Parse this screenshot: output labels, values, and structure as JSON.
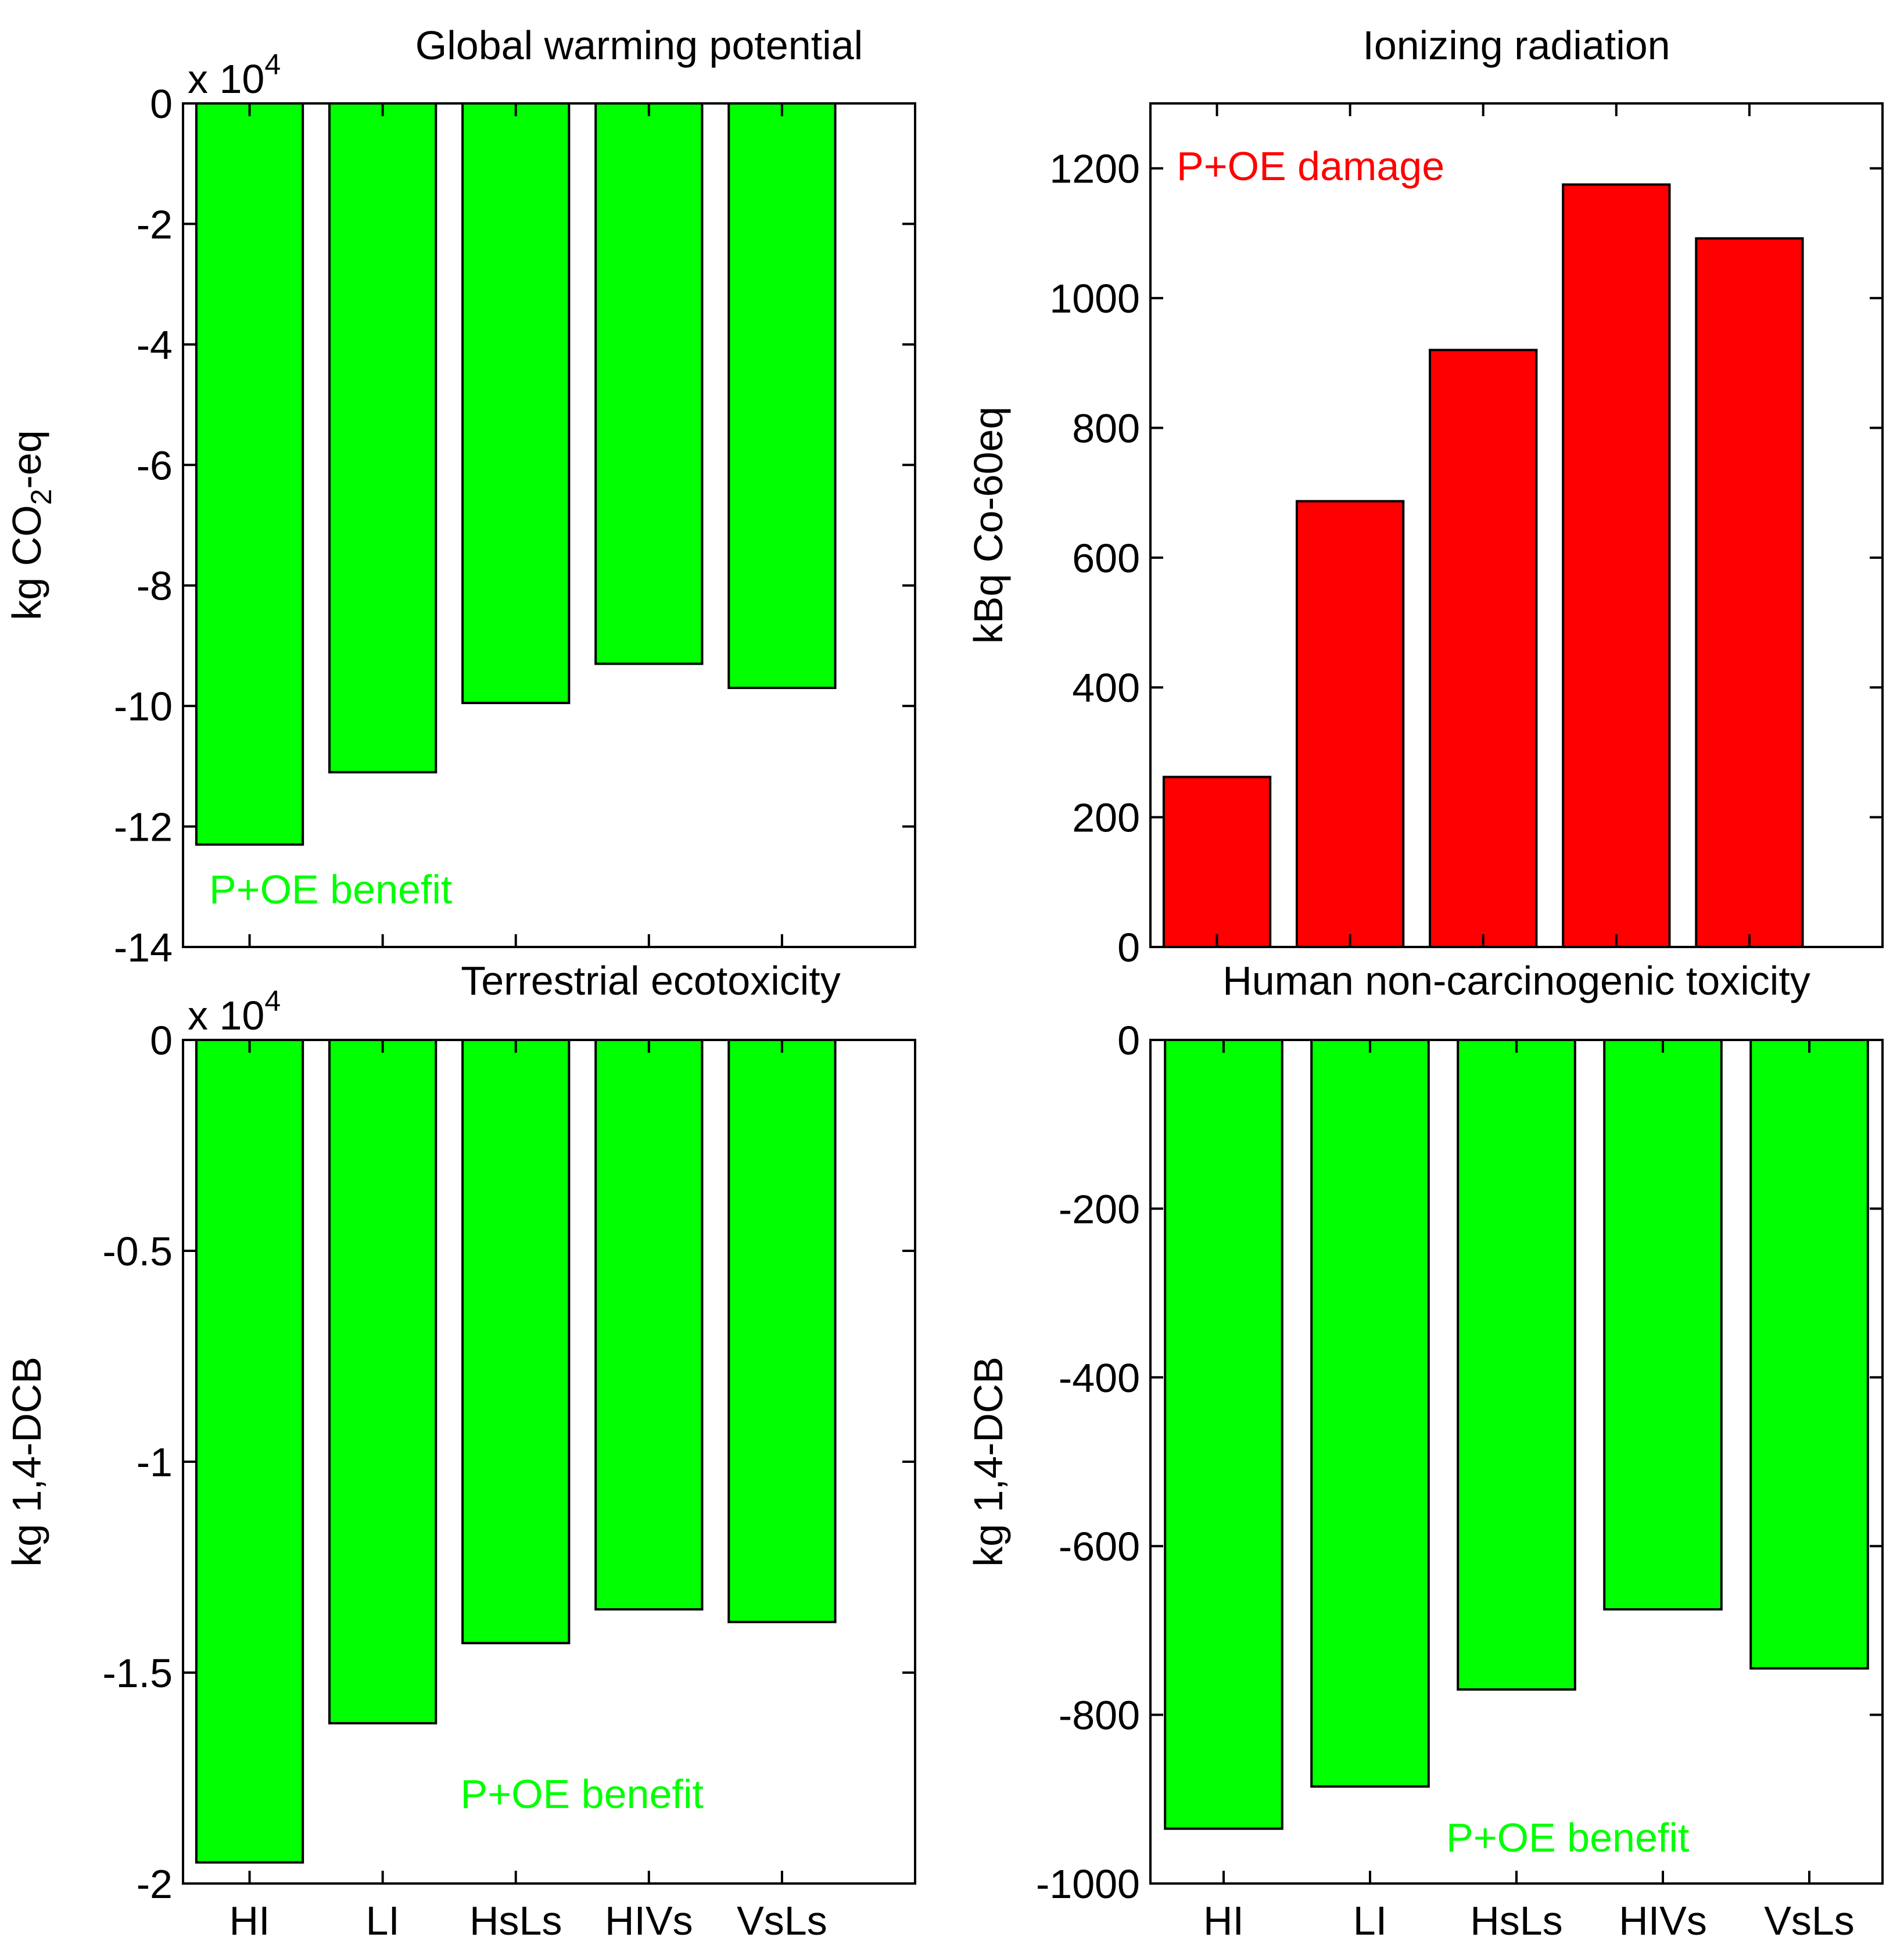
{
  "colors": {
    "benefit": "#00ff00",
    "damage": "#ff0000",
    "axis": "#000000",
    "background": "#ffffff"
  },
  "chart_data": [
    {
      "type": "bar",
      "title": "Global warming potential",
      "ylabel_parts": [
        "kg CO",
        "2",
        "-eq"
      ],
      "exponent_label": [
        "x 10",
        "4"
      ],
      "categories": [
        "HI",
        "LI",
        "HsLs",
        "HIVs",
        "VsLs"
      ],
      "values": [
        -12.3,
        -11.1,
        -9.95,
        -9.3,
        -9.7
      ],
      "value_scale": 10000,
      "ylim": [
        -14,
        0
      ],
      "yticks": [
        0,
        -2,
        -4,
        -6,
        -8,
        -10,
        -12,
        -14
      ],
      "ytick_labels": [
        "0",
        "-2",
        "-4",
        "-6",
        "-8",
        "-10",
        "-12",
        "-14"
      ],
      "xlim": [
        0.5,
        6
      ],
      "show_xtick_labels": false,
      "bar_color": "#00ff00",
      "annotation": {
        "text": "P+OE benefit",
        "color": "#00ff00",
        "placement": "bottom-left"
      }
    },
    {
      "type": "bar",
      "title": "Ionizing radiation",
      "ylabel": "kBq Co-60eq",
      "categories": [
        "HI",
        "LI",
        "HsLs",
        "HIVs",
        "VsLs"
      ],
      "values": [
        262,
        687,
        920,
        1175,
        1092
      ],
      "ylim": [
        0,
        1300
      ],
      "yticks": [
        0,
        200,
        400,
        600,
        800,
        1000,
        1200
      ],
      "ytick_labels": [
        "0",
        "200",
        "400",
        "600",
        "800",
        "1000",
        "1200"
      ],
      "xlim": [
        0.5,
        6
      ],
      "show_xtick_labels": false,
      "bar_color": "#ff0000",
      "annotation": {
        "text": "P+OE damage",
        "color": "#ff0000",
        "placement": "top-left"
      }
    },
    {
      "type": "bar",
      "title": "Terrestrial ecotoxicity",
      "ylabel": "kg 1,4-DCB",
      "exponent_label": [
        "x 10",
        "4"
      ],
      "categories": [
        "HI",
        "LI",
        "HsLs",
        "HIVs",
        "VsLs"
      ],
      "values": [
        -1.95,
        -1.62,
        -1.43,
        -1.35,
        -1.38
      ],
      "value_scale": 10000,
      "ylim": [
        -2,
        0
      ],
      "yticks": [
        0,
        -0.5,
        -1,
        -1.5,
        -2
      ],
      "ytick_labels": [
        "0",
        "-0.5",
        "-1",
        "-1.5",
        "-2"
      ],
      "xlim": [
        0.5,
        6
      ],
      "show_xtick_labels": true,
      "bar_color": "#00ff00",
      "annotation": {
        "text": "P+OE benefit",
        "color": "#00ff00",
        "placement": "bottom-center"
      }
    },
    {
      "type": "bar",
      "title": "Human non-carcinogenic toxicity",
      "ylabel": "kg 1,4-DCB",
      "categories": [
        "HI",
        "LI",
        "HsLs",
        "HIVs",
        "VsLs"
      ],
      "values": [
        -935,
        -885,
        -770,
        -675,
        -745
      ],
      "ylim": [
        -1000,
        0
      ],
      "yticks": [
        0,
        -200,
        -400,
        -600,
        -800,
        -1000
      ],
      "ytick_labels": [
        "0",
        "-200",
        "-400",
        "-600",
        "-800",
        "-1000"
      ],
      "xlim": [
        0.5,
        5.5
      ],
      "show_xtick_labels": true,
      "bar_color": "#00ff00",
      "annotation": {
        "text": "P+OE benefit",
        "color": "#00ff00",
        "placement": "bottom-right"
      }
    }
  ]
}
